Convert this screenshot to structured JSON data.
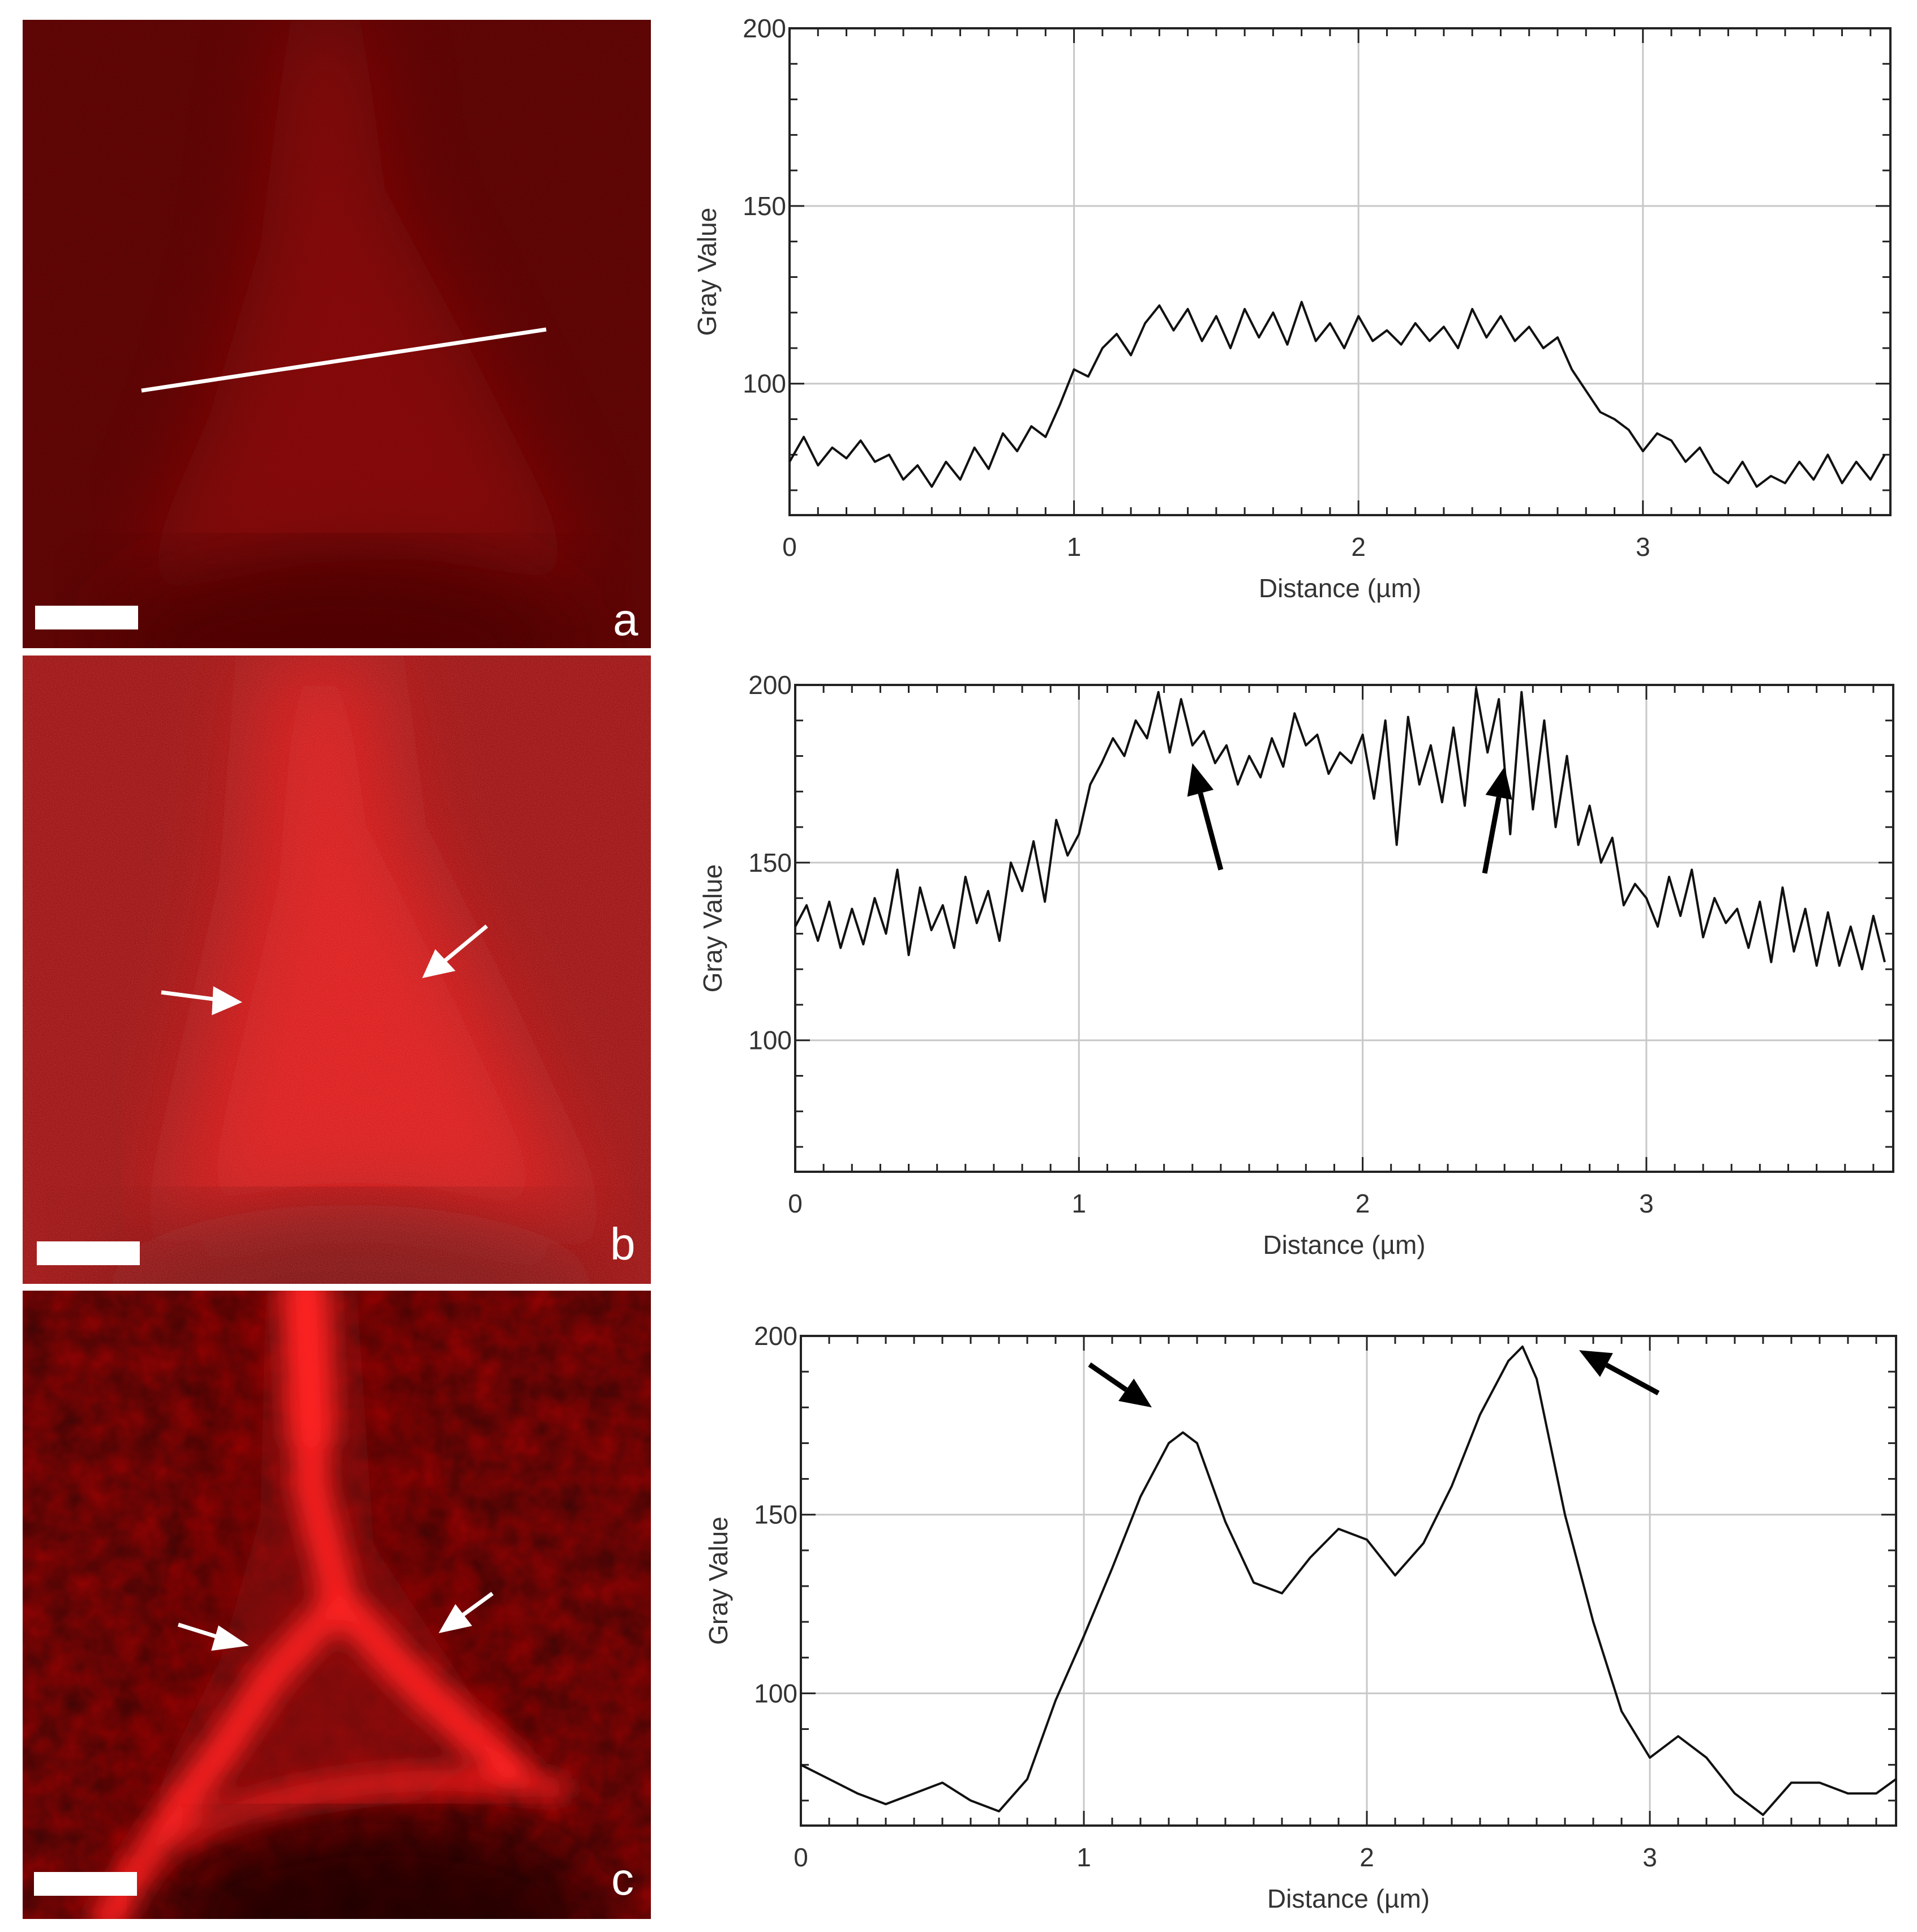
{
  "panels": [
    {
      "letter": "a"
    },
    {
      "letter": "b"
    },
    {
      "letter": "c"
    }
  ],
  "chart_data": [
    {
      "type": "line",
      "xlabel": "Distance (µm)",
      "ylabel": "Gray Value",
      "xlim": [
        0,
        3.87
      ],
      "ylim": [
        63,
        200
      ],
      "xticks": [
        0,
        1,
        2,
        3
      ],
      "yticks": [
        100,
        150,
        200
      ],
      "grid": true,
      "annotations": [],
      "series": [
        {
          "x": [
            0.0,
            0.05,
            0.1,
            0.15,
            0.2,
            0.25,
            0.3,
            0.35,
            0.4,
            0.45,
            0.5,
            0.55,
            0.6,
            0.65,
            0.7,
            0.75,
            0.8,
            0.85,
            0.9,
            0.95,
            1.0,
            1.05,
            1.1,
            1.15,
            1.2,
            1.25,
            1.3,
            1.35,
            1.4,
            1.45,
            1.5,
            1.55,
            1.6,
            1.65,
            1.7,
            1.75,
            1.8,
            1.85,
            1.9,
            1.95,
            2.0,
            2.05,
            2.1,
            2.15,
            2.2,
            2.25,
            2.3,
            2.35,
            2.4,
            2.45,
            2.5,
            2.55,
            2.6,
            2.65,
            2.7,
            2.75,
            2.8,
            2.85,
            2.9,
            2.95,
            3.0,
            3.05,
            3.1,
            3.15,
            3.2,
            3.25,
            3.3,
            3.35,
            3.4,
            3.45,
            3.5,
            3.55,
            3.6,
            3.65,
            3.7,
            3.75,
            3.8,
            3.85
          ],
          "y": [
            78,
            85,
            77,
            82,
            79,
            84,
            78,
            80,
            73,
            77,
            71,
            78,
            73,
            82,
            76,
            86,
            81,
            88,
            85,
            94,
            104,
            102,
            110,
            114,
            108,
            117,
            122,
            115,
            121,
            112,
            119,
            110,
            121,
            113,
            120,
            111,
            123,
            112,
            117,
            110,
            119,
            112,
            115,
            111,
            117,
            112,
            116,
            110,
            121,
            113,
            119,
            112,
            116,
            110,
            113,
            104,
            98,
            92,
            90,
            87,
            81,
            86,
            84,
            78,
            82,
            75,
            72,
            78,
            71,
            74,
            72,
            78,
            73,
            80,
            72,
            78,
            73,
            80
          ]
        }
      ]
    },
    {
      "type": "line",
      "xlabel": "Distance (µm)",
      "ylabel": "Gray Value",
      "xlim": [
        0,
        3.87
      ],
      "ylim": [
        63,
        200
      ],
      "xticks": [
        0,
        1,
        2,
        3
      ],
      "yticks": [
        100,
        150,
        200
      ],
      "grid": true,
      "annotations": [
        {
          "type": "arrow",
          "from": [
            1.5,
            148
          ],
          "to": [
            1.4,
            178
          ]
        },
        {
          "type": "arrow",
          "from": [
            2.43,
            147
          ],
          "to": [
            2.5,
            177
          ]
        }
      ],
      "series": [
        {
          "x": [
            0.0,
            0.04,
            0.08,
            0.12,
            0.16,
            0.2,
            0.24,
            0.28,
            0.32,
            0.36,
            0.4,
            0.44,
            0.48,
            0.52,
            0.56,
            0.6,
            0.64,
            0.68,
            0.72,
            0.76,
            0.8,
            0.84,
            0.88,
            0.92,
            0.96,
            1.0,
            1.04,
            1.08,
            1.12,
            1.16,
            1.2,
            1.24,
            1.28,
            1.32,
            1.36,
            1.4,
            1.44,
            1.48,
            1.52,
            1.56,
            1.6,
            1.64,
            1.68,
            1.72,
            1.76,
            1.8,
            1.84,
            1.88,
            1.92,
            1.96,
            2.0,
            2.04,
            2.08,
            2.12,
            2.16,
            2.2,
            2.24,
            2.28,
            2.32,
            2.36,
            2.4,
            2.44,
            2.48,
            2.52,
            2.56,
            2.6,
            2.64,
            2.68,
            2.72,
            2.76,
            2.8,
            2.84,
            2.88,
            2.92,
            2.96,
            3.0,
            3.04,
            3.08,
            3.12,
            3.16,
            3.2,
            3.24,
            3.28,
            3.32,
            3.36,
            3.4,
            3.44,
            3.48,
            3.52,
            3.56,
            3.6,
            3.64,
            3.68,
            3.72,
            3.76,
            3.8,
            3.84
          ],
          "y": [
            132,
            138,
            128,
            139,
            126,
            137,
            127,
            140,
            130,
            148,
            124,
            143,
            131,
            138,
            126,
            146,
            133,
            142,
            128,
            150,
            142,
            156,
            139,
            162,
            152,
            158,
            172,
            178,
            185,
            180,
            190,
            185,
            198,
            181,
            196,
            183,
            187,
            178,
            183,
            172,
            180,
            174,
            185,
            177,
            192,
            183,
            186,
            175,
            181,
            178,
            186,
            168,
            190,
            155,
            191,
            172,
            183,
            167,
            188,
            166,
            199,
            181,
            196,
            158,
            198,
            165,
            190,
            160,
            180,
            155,
            166,
            150,
            157,
            138,
            144,
            140,
            132,
            146,
            135,
            148,
            129,
            140,
            133,
            137,
            126,
            139,
            122,
            143,
            125,
            137,
            121,
            136,
            121,
            132,
            120,
            135,
            122
          ]
        }
      ]
    },
    {
      "type": "line",
      "xlabel": "Distance (µm)",
      "ylabel": "Gray Value",
      "xlim": [
        0,
        3.87
      ],
      "ylim": [
        63,
        200
      ],
      "xticks": [
        0,
        1,
        2,
        3
      ],
      "yticks": [
        100,
        150,
        200
      ],
      "grid": true,
      "annotations": [
        {
          "type": "arrow",
          "from": [
            1.02,
            192
          ],
          "to": [
            1.24,
            180
          ]
        },
        {
          "type": "arrow",
          "from": [
            3.03,
            184
          ],
          "to": [
            2.75,
            196
          ]
        }
      ],
      "series": [
        {
          "x": [
            0.0,
            0.1,
            0.2,
            0.3,
            0.4,
            0.5,
            0.6,
            0.7,
            0.8,
            0.9,
            1.0,
            1.1,
            1.2,
            1.3,
            1.35,
            1.4,
            1.5,
            1.6,
            1.7,
            1.8,
            1.9,
            2.0,
            2.1,
            2.2,
            2.3,
            2.4,
            2.5,
            2.55,
            2.6,
            2.7,
            2.8,
            2.9,
            3.0,
            3.1,
            3.2,
            3.3,
            3.4,
            3.5,
            3.6,
            3.7,
            3.8,
            3.87
          ],
          "y": [
            80,
            76,
            72,
            69,
            72,
            75,
            70,
            67,
            76,
            98,
            116,
            135,
            155,
            170,
            173,
            170,
            148,
            131,
            128,
            138,
            146,
            143,
            133,
            142,
            158,
            178,
            193,
            197,
            188,
            150,
            120,
            95,
            82,
            88,
            82,
            72,
            66,
            75,
            75,
            72,
            72,
            76
          ]
        }
      ]
    }
  ]
}
